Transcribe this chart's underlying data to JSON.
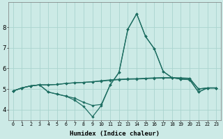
{
  "xlabel": "Humidex (Indice chaleur)",
  "ylabel": "",
  "background_color": "#cceae6",
  "grid_color": "#aad4cf",
  "line_color": "#1e6e62",
  "xlim": [
    -0.5,
    23.5
  ],
  "ylim": [
    3.5,
    9.2
  ],
  "yticks": [
    4,
    5,
    6,
    7,
    8
  ],
  "xticks": [
    0,
    1,
    2,
    3,
    4,
    5,
    6,
    7,
    8,
    9,
    10,
    11,
    12,
    13,
    14,
    15,
    16,
    17,
    18,
    19,
    20,
    21,
    22,
    23
  ],
  "x": [
    0,
    1,
    2,
    3,
    4,
    5,
    6,
    7,
    8,
    9,
    10,
    11,
    12,
    13,
    14,
    15,
    16,
    17,
    18,
    19,
    20,
    21,
    22,
    23
  ],
  "line_flat1": [
    4.9,
    5.05,
    5.15,
    5.2,
    5.2,
    5.22,
    5.27,
    5.3,
    5.32,
    5.35,
    5.38,
    5.42,
    5.45,
    5.47,
    5.48,
    5.5,
    5.52,
    5.53,
    5.53,
    5.52,
    5.5,
    5.0,
    5.05,
    5.05
  ],
  "line_flat2": [
    4.9,
    5.05,
    5.15,
    5.2,
    5.2,
    5.22,
    5.27,
    5.3,
    5.32,
    5.35,
    5.4,
    5.44,
    5.47,
    5.49,
    5.5,
    5.52,
    5.54,
    5.55,
    5.55,
    5.54,
    5.52,
    5.0,
    5.05,
    5.05
  ],
  "line_spike1": [
    4.9,
    5.05,
    5.15,
    5.2,
    4.85,
    4.75,
    4.65,
    4.55,
    4.35,
    4.2,
    4.25,
    5.2,
    5.8,
    7.9,
    8.65,
    7.55,
    6.95,
    5.85,
    5.55,
    5.48,
    5.45,
    4.85,
    5.05,
    5.05
  ],
  "line_spike2": [
    4.9,
    5.05,
    5.15,
    5.2,
    4.85,
    4.75,
    4.65,
    4.45,
    4.15,
    3.65,
    4.2,
    5.2,
    5.8,
    7.9,
    8.65,
    7.55,
    6.95,
    5.85,
    5.55,
    5.48,
    5.45,
    4.85,
    5.05,
    5.05
  ]
}
